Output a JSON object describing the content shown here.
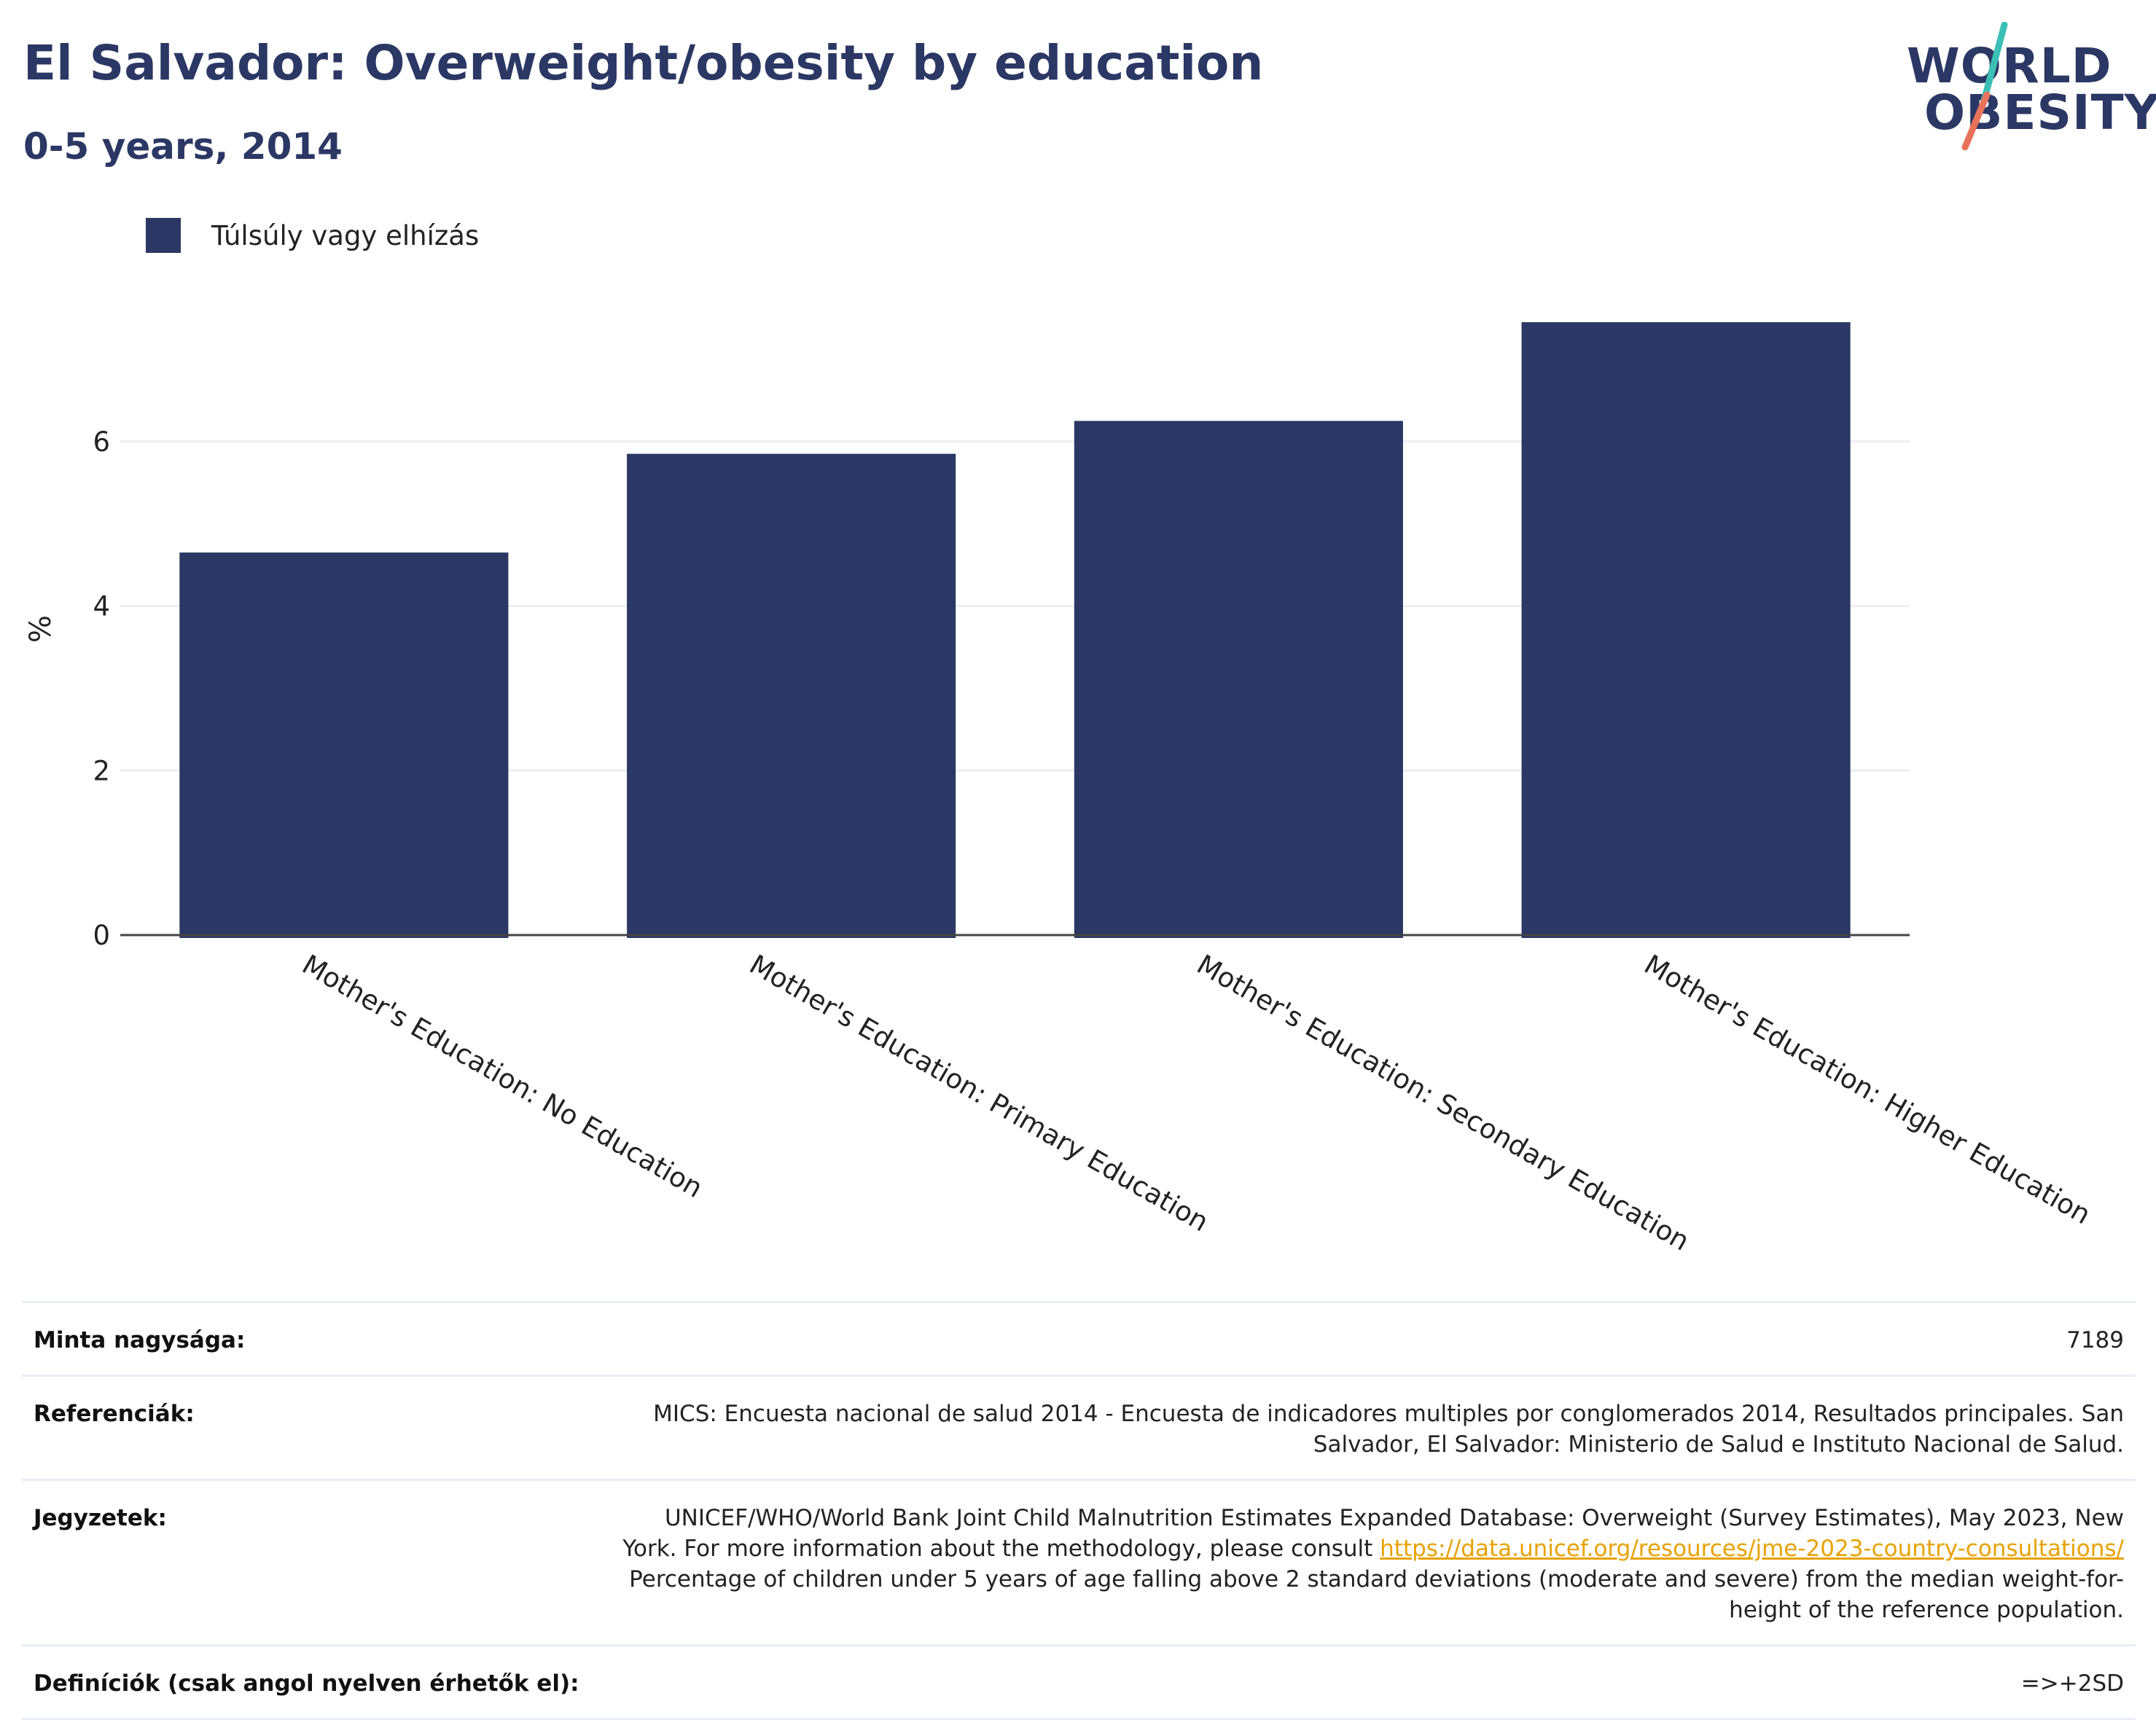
{
  "header": {
    "title": "El Salvador: Overweight/obesity by education",
    "subtitle": "0-5 years, 2014"
  },
  "logo": {
    "line1": "WORLD",
    "line2": "OBESITY",
    "colors": {
      "text": "#2b3764",
      "slash_top": "#3bbfb6",
      "slash_bottom": "#e8735a"
    }
  },
  "legend": {
    "label": "Túlsúly vagy elhízás",
    "color": "#2b3764"
  },
  "chart_data": {
    "type": "bar",
    "categories": [
      "Mother's Education: No Education",
      "Mother's Education: Primary Education",
      "Mother's Education: Secondary Education",
      "Mother's Education: Higher Education"
    ],
    "series": [
      {
        "name": "Túlsúly vagy elhízás",
        "values": [
          4.65,
          5.85,
          6.25,
          7.45
        ],
        "color": "#2b3764"
      }
    ],
    "ylabel": "%",
    "ylim": [
      0,
      8
    ],
    "yticks": [
      0,
      2,
      4,
      6
    ],
    "grid": true,
    "legend_position": "top-left"
  },
  "info": {
    "sample_size_label": "Minta nagysága:",
    "sample_size_value": "7189",
    "references_label": "Referenciák:",
    "references_value": "MICS: Encuesta nacional de salud 2014 - Encuesta de indicadores multiples por conglomerados 2014, Resultados principales. San Salvador, El Salvador: Ministerio de Salud e Instituto Nacional de Salud.",
    "notes_label": "Jegyzetek:",
    "notes_value_before": "UNICEF/WHO/World Bank Joint Child Malnutrition Estimates Expanded Database: Overweight (Survey Estimates), May 2023, New York. For more information about the methodology, please consult ",
    "notes_link": "https://data.unicef.org/resources/jme-2023-country-consultations/",
    "notes_value_after": " Percentage of children under 5 years of age falling above 2 standard deviations (moderate and severe) from the median weight-for-height of the reference population.",
    "definitions_label": "Definíciók (csak angol nyelven érhetők el):",
    "definitions_value": "=>+2SD"
  }
}
